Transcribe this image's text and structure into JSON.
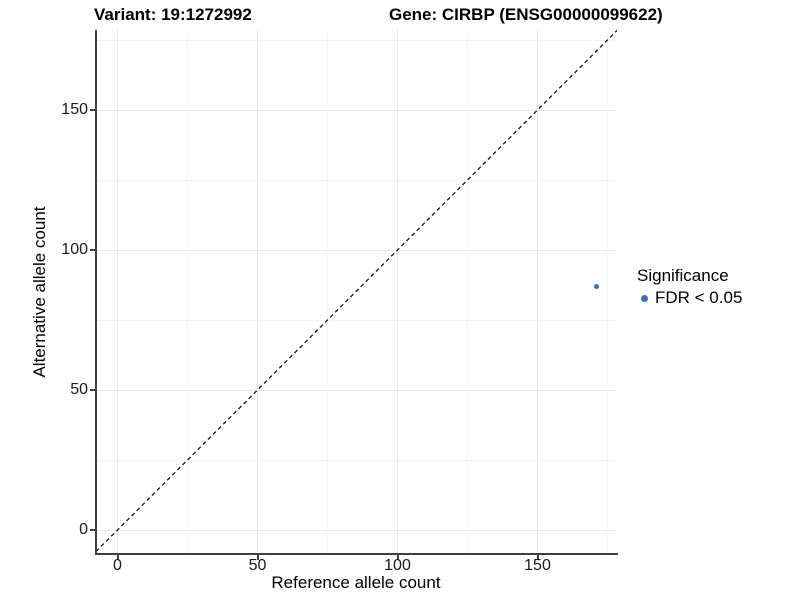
{
  "figure": {
    "title_left": "Variant: 19:1272992",
    "title_right": "Gene: CIRBP (ENSG00000099622)"
  },
  "chart_data": {
    "type": "scatter",
    "title": "Variant: 19:1272992",
    "subtitle": "Gene: CIRBP (ENSG00000099622)",
    "xlabel": "Reference allele count",
    "ylabel": "Alternative allele count",
    "xlim": [
      -8,
      178
    ],
    "ylim": [
      -8,
      178
    ],
    "x_ticks": [
      0,
      50,
      100,
      150
    ],
    "y_ticks": [
      0,
      50,
      100,
      150
    ],
    "x_minor_ticks": [
      25,
      75,
      125,
      175
    ],
    "y_minor_ticks": [
      25,
      75,
      125,
      175
    ],
    "grid": "major and minor, light gray, white background",
    "points": [
      {
        "x": 171,
        "y": 87,
        "series": "FDR < 0.05"
      }
    ],
    "point_color": "#3e72a8",
    "reference_line": {
      "equation": "y = x",
      "style": "dashed",
      "color": "#111111"
    },
    "legend": {
      "position": "right",
      "title": "Significance",
      "items": [
        {
          "label": "FDR < 0.05",
          "color": "#3e72a8"
        }
      ]
    }
  }
}
